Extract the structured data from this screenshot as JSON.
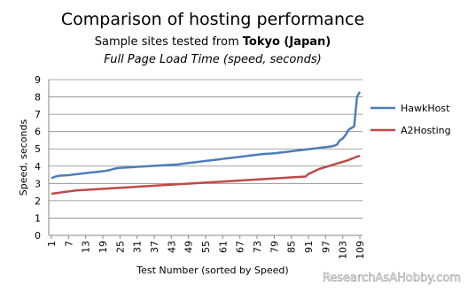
{
  "chart_data": {
    "type": "line",
    "title": "Comparison of hosting performance",
    "subtitle": "Sample sites tested from",
    "subtitle_emphasis": "Tokyo (Japan)",
    "chart_subtitle": "Full Page Load Time (speed, seconds)",
    "x_label": "Test Number (sorted by Speed)",
    "y_label": "Speed, seconds",
    "watermark": "ResearchAsAHobby.com",
    "x": [
      1,
      2,
      3,
      4,
      5,
      6,
      7,
      8,
      9,
      10,
      11,
      12,
      13,
      14,
      15,
      16,
      17,
      18,
      19,
      20,
      21,
      22,
      23,
      24,
      25,
      26,
      27,
      28,
      29,
      30,
      31,
      32,
      33,
      34,
      35,
      36,
      37,
      38,
      39,
      40,
      41,
      42,
      43,
      44,
      45,
      46,
      47,
      48,
      49,
      50,
      51,
      52,
      53,
      54,
      55,
      56,
      57,
      58,
      59,
      60,
      61,
      62,
      63,
      64,
      65,
      66,
      67,
      68,
      69,
      70,
      71,
      72,
      73,
      74,
      75,
      76,
      77,
      78,
      79,
      80,
      81,
      82,
      83,
      84,
      85,
      86,
      87,
      88,
      89,
      90,
      91,
      92,
      93,
      94,
      95,
      96,
      97,
      98,
      99,
      100,
      101,
      102,
      103,
      104,
      105,
      106,
      107,
      108,
      109
    ],
    "xlim": [
      1,
      109
    ],
    "xticks": [
      1,
      7,
      13,
      19,
      25,
      31,
      37,
      43,
      49,
      55,
      61,
      67,
      73,
      79,
      85,
      91,
      97,
      103,
      109
    ],
    "ylim": [
      0,
      9
    ],
    "yticks": [
      0,
      1,
      2,
      3,
      4,
      5,
      6,
      7,
      8,
      9
    ],
    "grid": true,
    "legend": "right",
    "series": [
      {
        "name": "HawkHost",
        "color": "#4a7ebb",
        "values": [
          3.3,
          3.38,
          3.42,
          3.45,
          3.46,
          3.47,
          3.48,
          3.5,
          3.52,
          3.54,
          3.56,
          3.58,
          3.6,
          3.62,
          3.64,
          3.65,
          3.67,
          3.69,
          3.71,
          3.73,
          3.76,
          3.8,
          3.85,
          3.88,
          3.9,
          3.91,
          3.92,
          3.93,
          3.94,
          3.95,
          3.96,
          3.97,
          3.98,
          3.99,
          4.0,
          4.01,
          4.02,
          4.03,
          4.04,
          4.05,
          4.06,
          4.07,
          4.08,
          4.09,
          4.1,
          4.12,
          4.14,
          4.16,
          4.18,
          4.2,
          4.22,
          4.24,
          4.26,
          4.28,
          4.3,
          4.32,
          4.34,
          4.36,
          4.38,
          4.4,
          4.42,
          4.44,
          4.46,
          4.48,
          4.5,
          4.52,
          4.54,
          4.56,
          4.58,
          4.6,
          4.62,
          4.64,
          4.66,
          4.68,
          4.7,
          4.71,
          4.72,
          4.73,
          4.74,
          4.76,
          4.78,
          4.8,
          4.82,
          4.84,
          4.86,
          4.88,
          4.9,
          4.92,
          4.94,
          4.96,
          4.98,
          5.0,
          5.02,
          5.04,
          5.06,
          5.08,
          5.1,
          5.12,
          5.14,
          5.18,
          5.25,
          5.5,
          5.6,
          5.8,
          6.1,
          6.2,
          6.3,
          8.0,
          8.3
        ]
      },
      {
        "name": "A2Hosting",
        "color": "#be4b48",
        "values": [
          2.4,
          2.43,
          2.45,
          2.47,
          2.5,
          2.52,
          2.54,
          2.56,
          2.58,
          2.6,
          2.61,
          2.62,
          2.63,
          2.64,
          2.65,
          2.66,
          2.67,
          2.68,
          2.69,
          2.7,
          2.71,
          2.72,
          2.73,
          2.74,
          2.75,
          2.76,
          2.77,
          2.78,
          2.79,
          2.8,
          2.81,
          2.82,
          2.83,
          2.84,
          2.85,
          2.86,
          2.87,
          2.88,
          2.89,
          2.9,
          2.91,
          2.92,
          2.93,
          2.94,
          2.95,
          2.96,
          2.97,
          2.98,
          2.99,
          3.0,
          3.01,
          3.02,
          3.03,
          3.04,
          3.05,
          3.06,
          3.07,
          3.08,
          3.09,
          3.1,
          3.11,
          3.12,
          3.13,
          3.14,
          3.15,
          3.16,
          3.17,
          3.18,
          3.19,
          3.2,
          3.21,
          3.22,
          3.23,
          3.24,
          3.25,
          3.26,
          3.27,
          3.28,
          3.29,
          3.3,
          3.31,
          3.32,
          3.33,
          3.34,
          3.35,
          3.36,
          3.37,
          3.38,
          3.39,
          3.4,
          3.55,
          3.62,
          3.7,
          3.78,
          3.85,
          3.9,
          3.95,
          4.0,
          4.05,
          4.1,
          4.15,
          4.2,
          4.25,
          4.3,
          4.35,
          4.42,
          4.48,
          4.55,
          4.6
        ]
      }
    ]
  }
}
